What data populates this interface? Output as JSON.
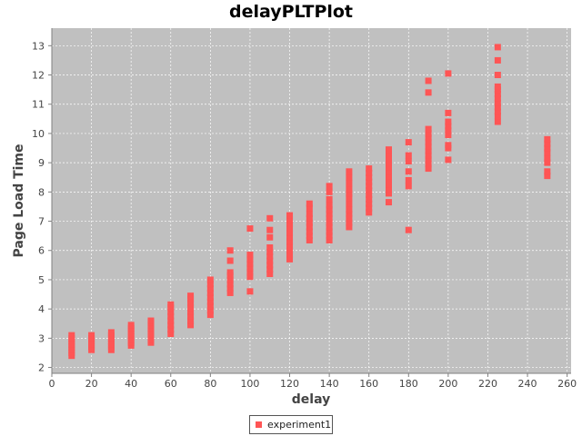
{
  "chart_data": {
    "type": "scatter",
    "title": "delayPLTPlot",
    "xlabel": "delay",
    "ylabel": "Page Load Time",
    "xlim": [
      0,
      262
    ],
    "ylim": [
      1.8,
      13.6
    ],
    "x_ticks": [
      0,
      20,
      40,
      60,
      80,
      100,
      120,
      140,
      160,
      180,
      200,
      220,
      240,
      260
    ],
    "y_ticks": [
      2,
      3,
      4,
      5,
      6,
      7,
      8,
      9,
      10,
      11,
      12,
      13
    ],
    "grid": true,
    "legend_position": "bottom-center",
    "series": [
      {
        "name": "experiment1",
        "color": "#ff5555",
        "marker": "square",
        "points": [
          [
            10,
            2.4
          ],
          [
            10,
            2.5
          ],
          [
            10,
            2.6
          ],
          [
            10,
            2.7
          ],
          [
            10,
            2.8
          ],
          [
            10,
            2.9
          ],
          [
            10,
            3.0
          ],
          [
            10,
            3.1
          ],
          [
            20,
            2.6
          ],
          [
            20,
            2.7
          ],
          [
            20,
            2.8
          ],
          [
            20,
            2.9
          ],
          [
            20,
            3.0
          ],
          [
            20,
            3.1
          ],
          [
            30,
            2.6
          ],
          [
            30,
            2.7
          ],
          [
            30,
            2.8
          ],
          [
            30,
            2.9
          ],
          [
            30,
            3.0
          ],
          [
            30,
            3.1
          ],
          [
            30,
            3.2
          ],
          [
            40,
            2.75
          ],
          [
            40,
            2.85
          ],
          [
            40,
            2.95
          ],
          [
            40,
            3.05
          ],
          [
            40,
            3.15
          ],
          [
            40,
            3.25
          ],
          [
            40,
            3.35
          ],
          [
            40,
            3.45
          ],
          [
            50,
            2.85
          ],
          [
            50,
            2.95
          ],
          [
            50,
            3.05
          ],
          [
            50,
            3.15
          ],
          [
            50,
            3.25
          ],
          [
            50,
            3.35
          ],
          [
            50,
            3.45
          ],
          [
            50,
            3.55
          ],
          [
            50,
            3.6
          ],
          [
            60,
            3.15
          ],
          [
            60,
            3.3
          ],
          [
            60,
            3.45
          ],
          [
            60,
            3.6
          ],
          [
            60,
            3.75
          ],
          [
            60,
            3.9
          ],
          [
            60,
            4.05
          ],
          [
            60,
            4.15
          ],
          [
            70,
            3.45
          ],
          [
            70,
            3.6
          ],
          [
            70,
            3.75
          ],
          [
            70,
            3.9
          ],
          [
            70,
            4.05
          ],
          [
            70,
            4.2
          ],
          [
            70,
            4.35
          ],
          [
            70,
            4.45
          ],
          [
            80,
            3.8
          ],
          [
            80,
            3.95
          ],
          [
            80,
            4.1
          ],
          [
            80,
            4.25
          ],
          [
            80,
            4.4
          ],
          [
            80,
            4.55
          ],
          [
            80,
            4.7
          ],
          [
            80,
            4.85
          ],
          [
            80,
            5.0
          ],
          [
            90,
            4.55
          ],
          [
            90,
            4.7
          ],
          [
            90,
            4.85
          ],
          [
            90,
            5.0
          ],
          [
            90,
            5.15
          ],
          [
            90,
            5.25
          ],
          [
            90,
            5.65
          ],
          [
            90,
            6.0
          ],
          [
            100,
            4.6
          ],
          [
            100,
            5.1
          ],
          [
            100,
            5.25
          ],
          [
            100,
            5.4
          ],
          [
            100,
            5.55
          ],
          [
            100,
            5.7
          ],
          [
            100,
            5.85
          ],
          [
            100,
            6.75
          ],
          [
            110,
            5.2
          ],
          [
            110,
            5.35
          ],
          [
            110,
            5.5
          ],
          [
            110,
            5.65
          ],
          [
            110,
            5.8
          ],
          [
            110,
            5.95
          ],
          [
            110,
            6.1
          ],
          [
            110,
            6.45
          ],
          [
            110,
            6.7
          ],
          [
            110,
            7.1
          ],
          [
            120,
            5.7
          ],
          [
            120,
            5.85
          ],
          [
            120,
            6.0
          ],
          [
            120,
            6.15
          ],
          [
            120,
            6.3
          ],
          [
            120,
            6.45
          ],
          [
            120,
            6.6
          ],
          [
            120,
            6.75
          ],
          [
            120,
            6.9
          ],
          [
            120,
            7.05
          ],
          [
            120,
            7.2
          ],
          [
            130,
            6.35
          ],
          [
            130,
            6.5
          ],
          [
            130,
            6.65
          ],
          [
            130,
            6.8
          ],
          [
            130,
            6.95
          ],
          [
            130,
            7.1
          ],
          [
            130,
            7.25
          ],
          [
            130,
            7.45
          ],
          [
            130,
            7.6
          ],
          [
            140,
            6.35
          ],
          [
            140,
            6.5
          ],
          [
            140,
            6.65
          ],
          [
            140,
            6.8
          ],
          [
            140,
            6.95
          ],
          [
            140,
            7.1
          ],
          [
            140,
            7.25
          ],
          [
            140,
            7.4
          ],
          [
            140,
            7.55
          ],
          [
            140,
            7.75
          ],
          [
            140,
            8.0
          ],
          [
            140,
            8.2
          ],
          [
            150,
            6.8
          ],
          [
            150,
            6.95
          ],
          [
            150,
            7.1
          ],
          [
            150,
            7.25
          ],
          [
            150,
            7.4
          ],
          [
            150,
            7.6
          ],
          [
            150,
            7.8
          ],
          [
            150,
            7.95
          ],
          [
            150,
            8.1
          ],
          [
            150,
            8.3
          ],
          [
            150,
            8.5
          ],
          [
            150,
            8.7
          ],
          [
            160,
            7.3
          ],
          [
            160,
            7.45
          ],
          [
            160,
            7.6
          ],
          [
            160,
            7.75
          ],
          [
            160,
            7.9
          ],
          [
            160,
            8.05
          ],
          [
            160,
            8.2
          ],
          [
            160,
            8.35
          ],
          [
            160,
            8.5
          ],
          [
            160,
            8.65
          ],
          [
            160,
            8.8
          ],
          [
            170,
            7.65
          ],
          [
            170,
            7.95
          ],
          [
            170,
            8.1
          ],
          [
            170,
            8.25
          ],
          [
            170,
            8.4
          ],
          [
            170,
            8.55
          ],
          [
            170,
            8.7
          ],
          [
            170,
            8.85
          ],
          [
            170,
            9.0
          ],
          [
            170,
            9.15
          ],
          [
            170,
            9.3
          ],
          [
            170,
            9.45
          ],
          [
            180,
            6.7
          ],
          [
            180,
            8.2
          ],
          [
            180,
            8.4
          ],
          [
            180,
            8.7
          ],
          [
            180,
            9.05
          ],
          [
            180,
            9.25
          ],
          [
            180,
            9.7
          ],
          [
            190,
            8.8
          ],
          [
            190,
            8.95
          ],
          [
            190,
            9.1
          ],
          [
            190,
            9.25
          ],
          [
            190,
            9.4
          ],
          [
            190,
            9.55
          ],
          [
            190,
            9.7
          ],
          [
            190,
            9.85
          ],
          [
            190,
            10.0
          ],
          [
            190,
            10.15
          ],
          [
            190,
            11.4
          ],
          [
            190,
            11.8
          ],
          [
            200,
            9.1
          ],
          [
            200,
            9.5
          ],
          [
            200,
            9.6
          ],
          [
            200,
            9.95
          ],
          [
            200,
            10.1
          ],
          [
            200,
            10.25
          ],
          [
            200,
            10.4
          ],
          [
            200,
            10.7
          ],
          [
            200,
            12.05
          ],
          [
            225,
            10.4
          ],
          [
            225,
            10.6
          ],
          [
            225,
            10.75
          ],
          [
            225,
            10.9
          ],
          [
            225,
            11.05
          ],
          [
            225,
            11.2
          ],
          [
            225,
            11.35
          ],
          [
            225,
            11.5
          ],
          [
            225,
            11.6
          ],
          [
            225,
            12.0
          ],
          [
            225,
            12.5
          ],
          [
            225,
            12.95
          ],
          [
            250,
            8.55
          ],
          [
            250,
            8.7
          ],
          [
            250,
            9.0
          ],
          [
            250,
            9.15
          ],
          [
            250,
            9.35
          ],
          [
            250,
            9.5
          ],
          [
            250,
            9.65
          ],
          [
            250,
            9.8
          ]
        ]
      }
    ]
  }
}
